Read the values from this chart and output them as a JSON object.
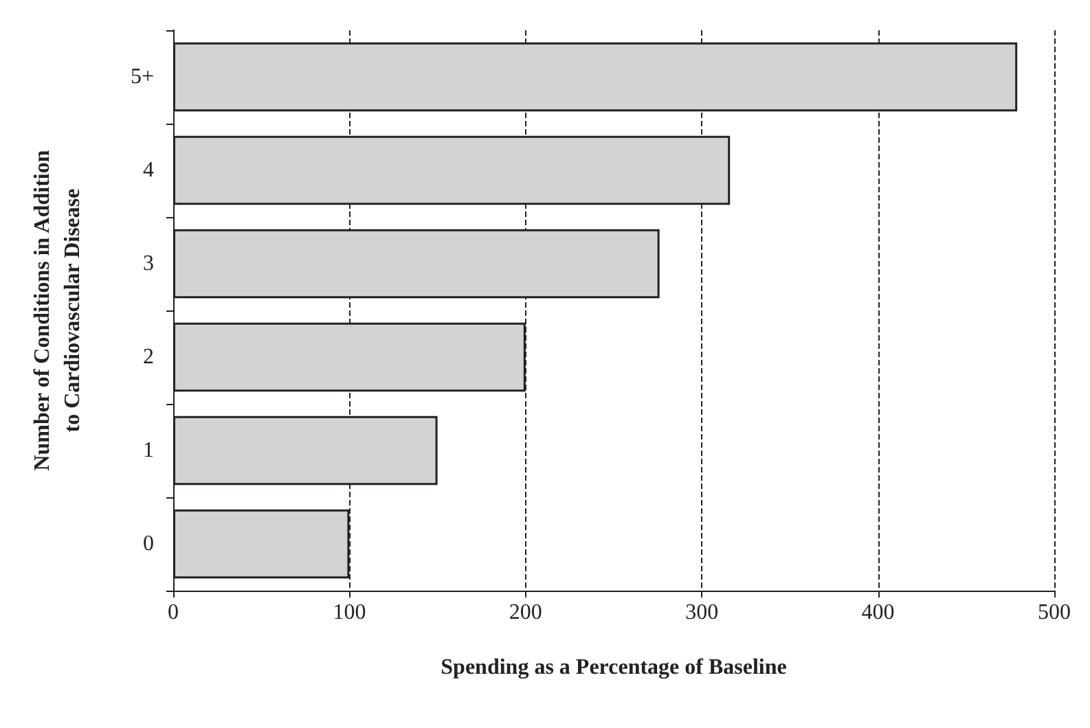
{
  "chart_data": {
    "type": "bar",
    "orientation": "horizontal",
    "xlabel": "Spending as a Percentage of Baseline",
    "ylabel": "Number of Conditions in Addition\nto Cardiovascular Disease",
    "categories": [
      "5+",
      "4",
      "3",
      "2",
      "1",
      "0"
    ],
    "values": [
      479,
      316,
      276,
      200,
      150,
      100
    ],
    "color": "#d1d3d4",
    "xlim": [
      0,
      500
    ],
    "xticks": [
      0,
      100,
      200,
      300,
      400,
      500
    ],
    "grid": "x",
    "line_style": "dashed"
  }
}
